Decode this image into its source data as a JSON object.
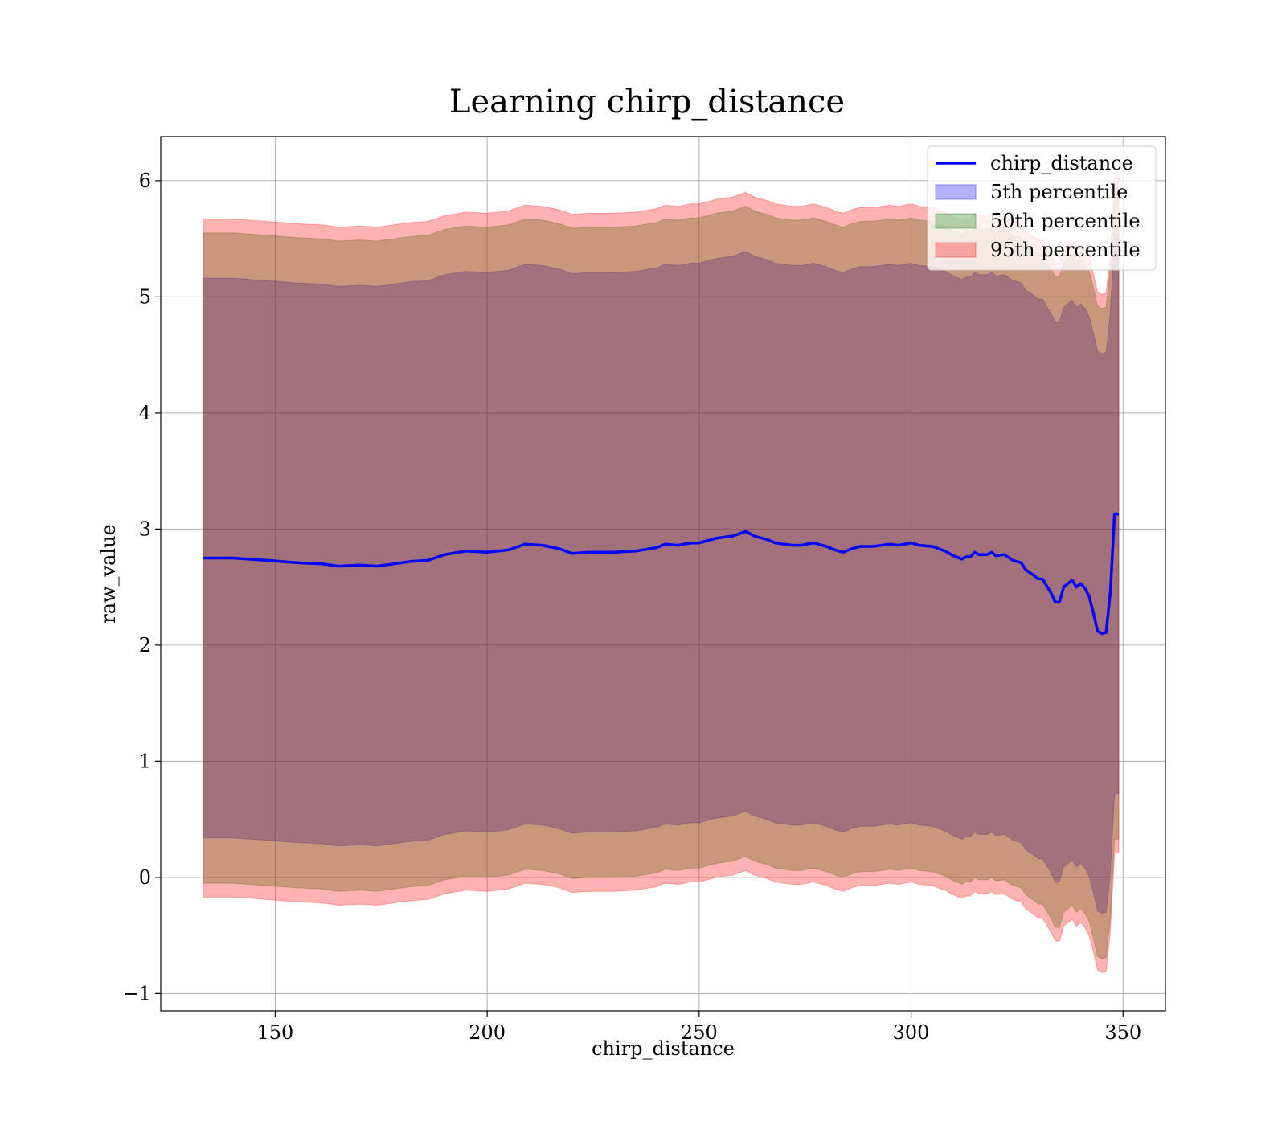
{
  "chart_data": {
    "type": "area",
    "title": "Learning chirp_distance",
    "xlabel": "chirp_distance",
    "ylabel": "raw_value",
    "xlim": [
      123,
      360
    ],
    "ylim": [
      -1.15,
      6.38
    ],
    "xticks": [
      150,
      200,
      250,
      300,
      350
    ],
    "xtick_labels": [
      "150",
      "200",
      "250",
      "300",
      "350"
    ],
    "yticks": [
      -1,
      0,
      1,
      2,
      3,
      4,
      5,
      6
    ],
    "ytick_labels": [
      "−1",
      "0",
      "1",
      "2",
      "3",
      "4",
      "5",
      "6"
    ],
    "grid": true,
    "legend_position": "top-right",
    "x": [
      133,
      140,
      148,
      155,
      161,
      165,
      170,
      174,
      178,
      182,
      186,
      190,
      195,
      200,
      205,
      209,
      213,
      217,
      220,
      224,
      226,
      230,
      235,
      240,
      242,
      245,
      248,
      250,
      254,
      258,
      261,
      263,
      266,
      268,
      270,
      272,
      274,
      277,
      280,
      282,
      284,
      286,
      288,
      291,
      293,
      295,
      297,
      300,
      302,
      305,
      308,
      310,
      312,
      313,
      314,
      315,
      316,
      318,
      319,
      320,
      322,
      324,
      326,
      327,
      329,
      330,
      331,
      332,
      333,
      334,
      335,
      336,
      337,
      338,
      339,
      340,
      341,
      342,
      343,
      344,
      345,
      346,
      347,
      348,
      349
    ],
    "series": [
      {
        "name": "chirp_distance",
        "type": "line",
        "color": "#0000ff",
        "values": [
          2.75,
          2.75,
          2.73,
          2.71,
          2.7,
          2.68,
          2.69,
          2.68,
          2.7,
          2.72,
          2.73,
          2.78,
          2.81,
          2.8,
          2.82,
          2.87,
          2.86,
          2.83,
          2.79,
          2.8,
          2.8,
          2.8,
          2.81,
          2.84,
          2.87,
          2.86,
          2.88,
          2.88,
          2.92,
          2.94,
          2.98,
          2.94,
          2.91,
          2.88,
          2.87,
          2.86,
          2.86,
          2.88,
          2.85,
          2.82,
          2.8,
          2.83,
          2.85,
          2.85,
          2.86,
          2.87,
          2.86,
          2.88,
          2.86,
          2.85,
          2.81,
          2.77,
          2.74,
          2.76,
          2.76,
          2.8,
          2.78,
          2.78,
          2.8,
          2.77,
          2.78,
          2.73,
          2.71,
          2.65,
          2.6,
          2.57,
          2.57,
          2.51,
          2.45,
          2.37,
          2.37,
          2.5,
          2.53,
          2.56,
          2.5,
          2.53,
          2.49,
          2.42,
          2.28,
          2.12,
          2.1,
          2.11,
          2.45,
          3.13,
          3.13
        ]
      },
      {
        "name": "5th percentile",
        "type": "band",
        "color": "#0000ff",
        "alpha": 0.3,
        "lower": [
          0.34,
          0.34,
          0.32,
          0.3,
          0.29,
          0.27,
          0.28,
          0.27,
          0.29,
          0.31,
          0.32,
          0.37,
          0.4,
          0.39,
          0.41,
          0.46,
          0.45,
          0.42,
          0.38,
          0.39,
          0.39,
          0.39,
          0.4,
          0.43,
          0.46,
          0.45,
          0.47,
          0.47,
          0.51,
          0.53,
          0.57,
          0.53,
          0.5,
          0.47,
          0.46,
          0.45,
          0.45,
          0.47,
          0.44,
          0.41,
          0.39,
          0.42,
          0.44,
          0.44,
          0.45,
          0.46,
          0.45,
          0.47,
          0.45,
          0.44,
          0.4,
          0.36,
          0.33,
          0.35,
          0.35,
          0.39,
          0.37,
          0.37,
          0.39,
          0.36,
          0.37,
          0.32,
          0.3,
          0.24,
          0.19,
          0.16,
          0.16,
          0.1,
          0.04,
          -0.04,
          -0.04,
          0.09,
          0.12,
          0.15,
          0.09,
          0.12,
          0.08,
          0.01,
          -0.13,
          -0.29,
          -0.31,
          -0.3,
          0.04,
          0.72,
          0.72
        ],
        "upper": [
          5.16,
          5.16,
          5.14,
          5.12,
          5.11,
          5.09,
          5.1,
          5.09,
          5.11,
          5.13,
          5.14,
          5.19,
          5.22,
          5.21,
          5.23,
          5.28,
          5.27,
          5.24,
          5.2,
          5.21,
          5.21,
          5.21,
          5.22,
          5.25,
          5.28,
          5.27,
          5.29,
          5.29,
          5.33,
          5.35,
          5.39,
          5.35,
          5.32,
          5.29,
          5.28,
          5.27,
          5.27,
          5.29,
          5.26,
          5.23,
          5.21,
          5.24,
          5.26,
          5.26,
          5.27,
          5.28,
          5.27,
          5.29,
          5.27,
          5.26,
          5.22,
          5.18,
          5.15,
          5.17,
          5.17,
          5.21,
          5.19,
          5.19,
          5.21,
          5.18,
          5.19,
          5.14,
          5.12,
          5.06,
          5.01,
          4.98,
          4.98,
          4.92,
          4.86,
          4.78,
          4.78,
          4.91,
          4.94,
          4.97,
          4.91,
          4.94,
          4.9,
          4.83,
          4.69,
          4.53,
          4.51,
          4.52,
          4.86,
          5.54,
          5.54
        ]
      },
      {
        "name": "50th percentile",
        "type": "band",
        "color": "#008000",
        "alpha": 0.3,
        "lower": [
          -0.05,
          -0.05,
          -0.07,
          -0.09,
          -0.1,
          -0.12,
          -0.11,
          -0.12,
          -0.1,
          -0.08,
          -0.07,
          -0.02,
          0.01,
          0.0,
          0.02,
          0.07,
          0.06,
          0.03,
          -0.01,
          0.0,
          0.0,
          0.0,
          0.01,
          0.04,
          0.07,
          0.06,
          0.08,
          0.08,
          0.12,
          0.14,
          0.18,
          0.14,
          0.11,
          0.08,
          0.07,
          0.06,
          0.06,
          0.08,
          0.05,
          0.02,
          0.0,
          0.03,
          0.05,
          0.05,
          0.06,
          0.07,
          0.06,
          0.08,
          0.06,
          0.05,
          0.01,
          -0.03,
          -0.06,
          -0.04,
          -0.04,
          0.0,
          -0.02,
          -0.02,
          0.0,
          -0.03,
          -0.02,
          -0.07,
          -0.09,
          -0.15,
          -0.2,
          -0.23,
          -0.23,
          -0.29,
          -0.35,
          -0.43,
          -0.43,
          -0.3,
          -0.27,
          -0.24,
          -0.3,
          -0.27,
          -0.31,
          -0.38,
          -0.52,
          -0.68,
          -0.7,
          -0.69,
          -0.35,
          0.33,
          0.33
        ],
        "upper": [
          5.55,
          5.55,
          5.53,
          5.51,
          5.5,
          5.48,
          5.49,
          5.48,
          5.5,
          5.52,
          5.53,
          5.58,
          5.61,
          5.6,
          5.62,
          5.67,
          5.66,
          5.63,
          5.59,
          5.6,
          5.6,
          5.6,
          5.61,
          5.64,
          5.67,
          5.66,
          5.68,
          5.68,
          5.72,
          5.74,
          5.78,
          5.74,
          5.71,
          5.68,
          5.67,
          5.66,
          5.66,
          5.68,
          5.65,
          5.62,
          5.6,
          5.63,
          5.65,
          5.65,
          5.66,
          5.67,
          5.66,
          5.68,
          5.66,
          5.65,
          5.61,
          5.57,
          5.54,
          5.56,
          5.56,
          5.6,
          5.58,
          5.58,
          5.6,
          5.57,
          5.58,
          5.53,
          5.51,
          5.45,
          5.4,
          5.37,
          5.37,
          5.31,
          5.25,
          5.17,
          5.17,
          5.3,
          5.33,
          5.36,
          5.3,
          5.33,
          5.29,
          5.22,
          5.08,
          4.92,
          4.9,
          4.91,
          5.25,
          5.93,
          5.93
        ]
      },
      {
        "name": "95th percentile",
        "type": "band",
        "color": "#ff0000",
        "alpha": 0.3,
        "lower": [
          -0.17,
          -0.17,
          -0.19,
          -0.21,
          -0.22,
          -0.24,
          -0.23,
          -0.24,
          -0.22,
          -0.2,
          -0.19,
          -0.14,
          -0.11,
          -0.12,
          -0.1,
          -0.05,
          -0.06,
          -0.09,
          -0.13,
          -0.12,
          -0.12,
          -0.12,
          -0.11,
          -0.08,
          -0.05,
          -0.06,
          -0.04,
          -0.04,
          0.0,
          0.02,
          0.06,
          0.02,
          -0.01,
          -0.04,
          -0.05,
          -0.06,
          -0.06,
          -0.04,
          -0.07,
          -0.1,
          -0.12,
          -0.09,
          -0.07,
          -0.07,
          -0.06,
          -0.05,
          -0.06,
          -0.04,
          -0.06,
          -0.07,
          -0.11,
          -0.15,
          -0.18,
          -0.16,
          -0.16,
          -0.12,
          -0.14,
          -0.14,
          -0.12,
          -0.15,
          -0.14,
          -0.19,
          -0.21,
          -0.27,
          -0.32,
          -0.35,
          -0.35,
          -0.41,
          -0.47,
          -0.55,
          -0.55,
          -0.42,
          -0.39,
          -0.36,
          -0.42,
          -0.39,
          -0.43,
          -0.5,
          -0.64,
          -0.8,
          -0.82,
          -0.81,
          -0.47,
          0.21,
          0.21
        ],
        "upper": [
          5.67,
          5.67,
          5.65,
          5.63,
          5.62,
          5.6,
          5.61,
          5.6,
          5.62,
          5.64,
          5.65,
          5.7,
          5.73,
          5.72,
          5.74,
          5.79,
          5.78,
          5.75,
          5.71,
          5.72,
          5.72,
          5.72,
          5.73,
          5.76,
          5.79,
          5.78,
          5.8,
          5.8,
          5.84,
          5.86,
          5.9,
          5.86,
          5.83,
          5.8,
          5.79,
          5.78,
          5.78,
          5.8,
          5.77,
          5.74,
          5.72,
          5.75,
          5.77,
          5.77,
          5.78,
          5.79,
          5.78,
          5.8,
          5.78,
          5.77,
          5.73,
          5.69,
          5.66,
          5.68,
          5.68,
          5.72,
          5.7,
          5.7,
          5.72,
          5.69,
          5.7,
          5.65,
          5.63,
          5.57,
          5.52,
          5.49,
          5.49,
          5.43,
          5.37,
          5.29,
          5.29,
          5.42,
          5.45,
          5.48,
          5.42,
          5.45,
          5.41,
          5.34,
          5.2,
          5.04,
          5.02,
          5.03,
          5.37,
          6.05,
          6.05
        ]
      }
    ]
  }
}
